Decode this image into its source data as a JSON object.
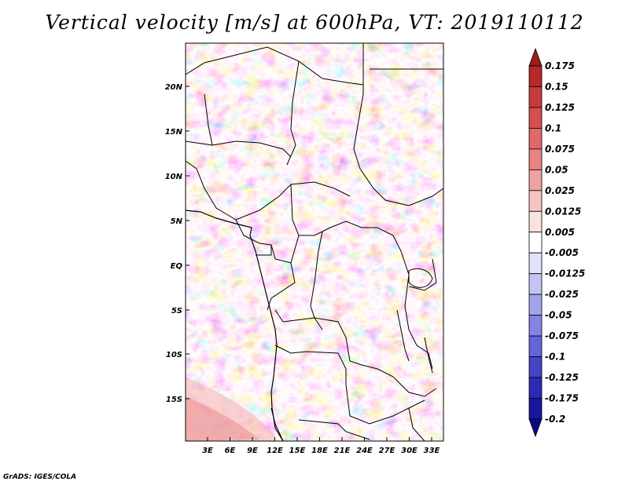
{
  "title": "Vertical velocity [m/s] at 600hPa, VT: 2019110112",
  "credit": "GrADS: IGES/COLA",
  "axes": {
    "lat_labels": [
      "20N",
      "15N",
      "10N",
      "5N",
      "EQ",
      "5S",
      "10S",
      "15S"
    ],
    "lon_labels": [
      "3E",
      "6E",
      "9E",
      "12E",
      "15E",
      "18E",
      "21E",
      "24E",
      "27E",
      "30E",
      "33E"
    ]
  },
  "colorbar": {
    "labels": [
      "0.175",
      "0.15",
      "0.125",
      "0.1",
      "0.075",
      "0.05",
      "0.025",
      "0.0125",
      "0.005",
      "-0.005",
      "-0.0125",
      "-0.025",
      "-0.05",
      "-0.075",
      "-0.1",
      "-0.125",
      "-0.175",
      "-0.2"
    ],
    "colors": [
      "#a01a1a",
      "#b72828",
      "#c83a3a",
      "#d64e4e",
      "#e06868",
      "#e88484",
      "#f0a2a2",
      "#f7c4c4",
      "#fbe2e2",
      "#ffffff",
      "#e2e2fa",
      "#c4c4f3",
      "#a4a4eb",
      "#8484e3",
      "#6464d6",
      "#4444c6",
      "#2a2ab4",
      "#16169e",
      "#0a0a84"
    ]
  },
  "colors": {
    "frame": "#000000",
    "background": "#ffffff"
  }
}
